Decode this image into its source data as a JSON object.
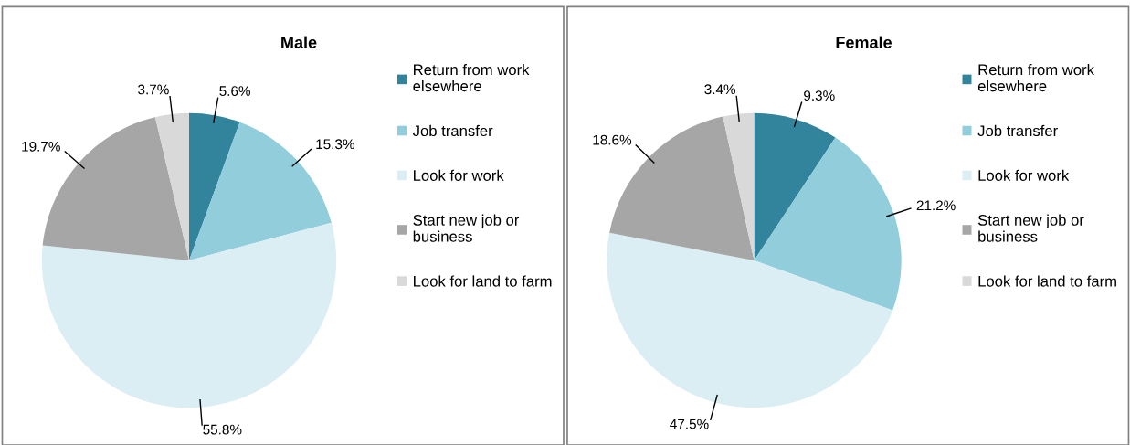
{
  "chart_data": [
    {
      "type": "pie",
      "title": "Male",
      "categories": [
        "Return from work\nelsewhere",
        "Job transfer",
        "Look for work",
        "Start new job or\nbusiness",
        "Look for land to farm"
      ],
      "values": [
        5.6,
        15.3,
        55.8,
        19.7,
        3.7
      ],
      "value_labels": [
        "5.6%",
        "15.3%",
        "55.8%",
        "19.7%",
        "3.7%"
      ],
      "colors": [
        "#31849b",
        "#92cddc",
        "#dbeef3",
        "#a6a6a6",
        "#d9d9d9"
      ],
      "legend": "right"
    },
    {
      "type": "pie",
      "title": "Female",
      "categories": [
        "Return from work\nelsewhere",
        "Job transfer",
        "Look for work",
        "Start new job or\nbusiness",
        "Look for land to farm"
      ],
      "values": [
        9.3,
        21.2,
        47.5,
        18.6,
        3.4
      ],
      "value_labels": [
        "9.3%",
        "21.2%",
        "47.5%",
        "18.6%",
        "3.4%"
      ],
      "colors": [
        "#31849b",
        "#92cddc",
        "#dbeef3",
        "#a6a6a6",
        "#d9d9d9"
      ],
      "legend": "right"
    }
  ]
}
